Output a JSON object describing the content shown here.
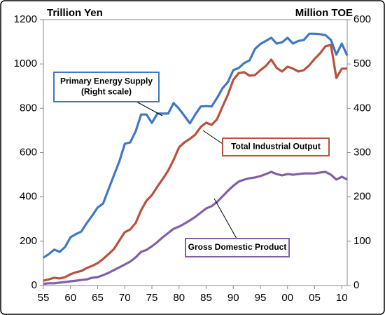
{
  "chart_data": {
    "type": "line",
    "y_label": "Trillion Yen",
    "y2_label": "Million TOE",
    "x": [
      1955,
      1956,
      1957,
      1958,
      1959,
      1960,
      1961,
      1962,
      1963,
      1964,
      1965,
      1966,
      1967,
      1968,
      1969,
      1970,
      1971,
      1972,
      1973,
      1974,
      1975,
      1976,
      1977,
      1978,
      1979,
      1980,
      1981,
      1982,
      1983,
      1984,
      1985,
      1986,
      1987,
      1988,
      1989,
      1990,
      1991,
      1992,
      1993,
      1994,
      1995,
      1996,
      1997,
      1998,
      1999,
      2000,
      2001,
      2002,
      2003,
      2004,
      2005,
      2006,
      2007,
      2008,
      2009,
      2010,
      2011
    ],
    "series": [
      {
        "name": "Primary Energy Supply",
        "color": "#3f78c4",
        "axis": "y2",
        "values": [
          63,
          71,
          81,
          76,
          87,
          109,
          116,
          122,
          141,
          158,
          176,
          185,
          217,
          249,
          280,
          320,
          323,
          348,
          386,
          386,
          367,
          388,
          388,
          388,
          412,
          399,
          383,
          366,
          386,
          404,
          405,
          404,
          423,
          445,
          459,
          486,
          491,
          502,
          508,
          534,
          545,
          552,
          559,
          546,
          549,
          559,
          546,
          552,
          554,
          568,
          568,
          567,
          565,
          554,
          521,
          546,
          519
        ]
      },
      {
        "name": "Total Industrial Output",
        "color": "#b8513e",
        "values": [
          22,
          28,
          35,
          32,
          38,
          51,
          60,
          66,
          79,
          89,
          101,
          120,
          142,
          165,
          203,
          241,
          253,
          282,
          339,
          383,
          408,
          446,
          481,
          519,
          567,
          624,
          646,
          662,
          681,
          716,
          735,
          725,
          750,
          807,
          861,
          928,
          959,
          963,
          947,
          950,
          972,
          991,
          1020,
          982,
          966,
          988,
          979,
          966,
          972,
          994,
          1023,
          1048,
          1080,
          1086,
          937,
          979,
          979
        ]
      },
      {
        "name": "Gross Domestic Product",
        "color": "#7f60a6",
        "values": [
          8,
          10,
          10,
          13,
          16,
          19,
          22,
          25,
          28,
          35,
          38,
          47,
          57,
          70,
          82,
          95,
          108,
          127,
          152,
          161,
          177,
          196,
          218,
          237,
          256,
          266,
          279,
          294,
          310,
          329,
          348,
          358,
          377,
          402,
          427,
          450,
          469,
          478,
          484,
          488,
          494,
          503,
          513,
          503,
          497,
          503,
          500,
          503,
          506,
          506,
          506,
          510,
          513,
          500,
          478,
          491,
          478
        ]
      }
    ],
    "annotations": [
      {
        "lines": [
          "Primary Energy Supply",
          "(Right scale)"
        ]
      },
      {
        "lines": [
          "Total Industrial Output"
        ]
      },
      {
        "lines": [
          "Gross Domestic Product"
        ]
      }
    ],
    "xlim": [
      1955,
      2011
    ],
    "xticks": [
      {
        "value": 1955,
        "label": "55"
      },
      {
        "value": 1960,
        "label": "60"
      },
      {
        "value": 1965,
        "label": "65"
      },
      {
        "value": 1970,
        "label": "70"
      },
      {
        "value": 1975,
        "label": "75"
      },
      {
        "value": 1980,
        "label": "80"
      },
      {
        "value": 1985,
        "label": "85"
      },
      {
        "value": 1990,
        "label": "90"
      },
      {
        "value": 1995,
        "label": "95"
      },
      {
        "value": 2000,
        "label": "00"
      },
      {
        "value": 2005,
        "label": "05"
      },
      {
        "value": 2010,
        "label": "10"
      }
    ],
    "ylim": [
      0,
      1200
    ],
    "yticks": [
      0,
      200,
      400,
      600,
      800,
      1000,
      1200
    ],
    "y2lim": [
      0,
      600
    ],
    "y2ticks": [
      0,
      100,
      200,
      300,
      400,
      500,
      600
    ],
    "grid": false
  }
}
